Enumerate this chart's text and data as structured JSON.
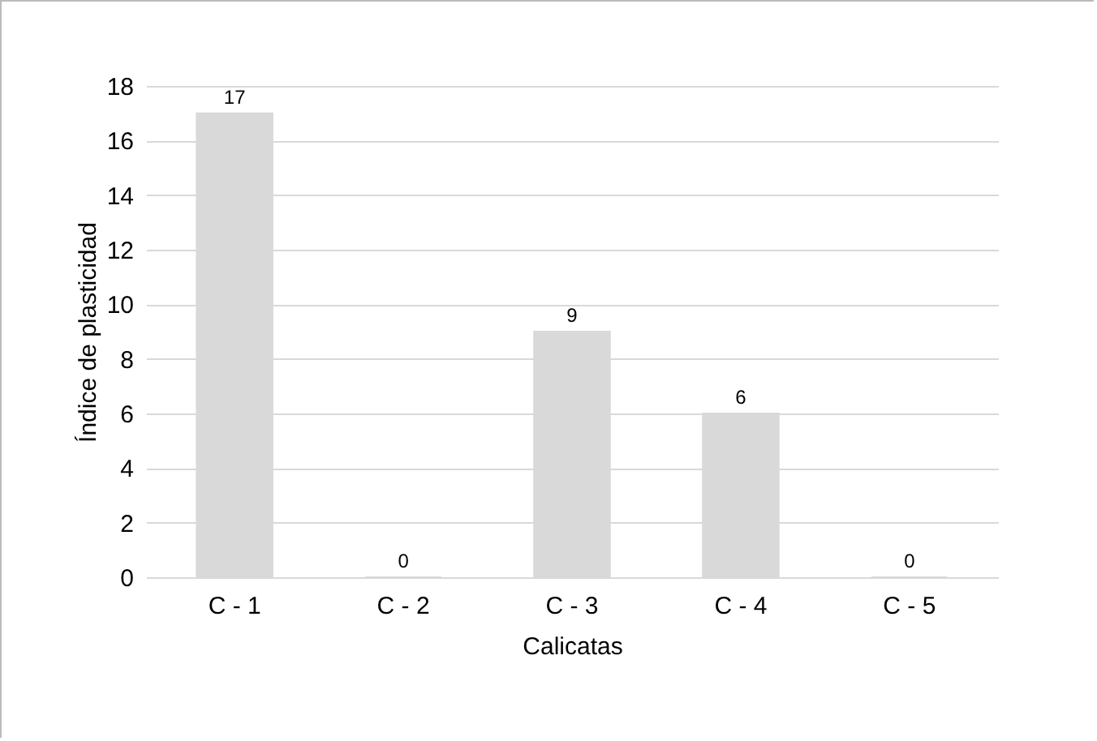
{
  "chart_data": {
    "type": "bar",
    "xlabel": "Calicatas",
    "ylabel": "Índice de plasticidad",
    "categories": [
      "C - 1",
      "C - 2",
      "C - 3",
      "C - 4",
      "C - 5"
    ],
    "values": [
      17,
      0,
      9,
      6,
      0
    ],
    "color": "#d9d9d9",
    "ylim": [
      0,
      18
    ],
    "yticks": [
      0,
      2,
      4,
      6,
      8,
      10,
      12,
      14,
      16,
      18
    ],
    "grid": "y",
    "data_labels": true
  }
}
